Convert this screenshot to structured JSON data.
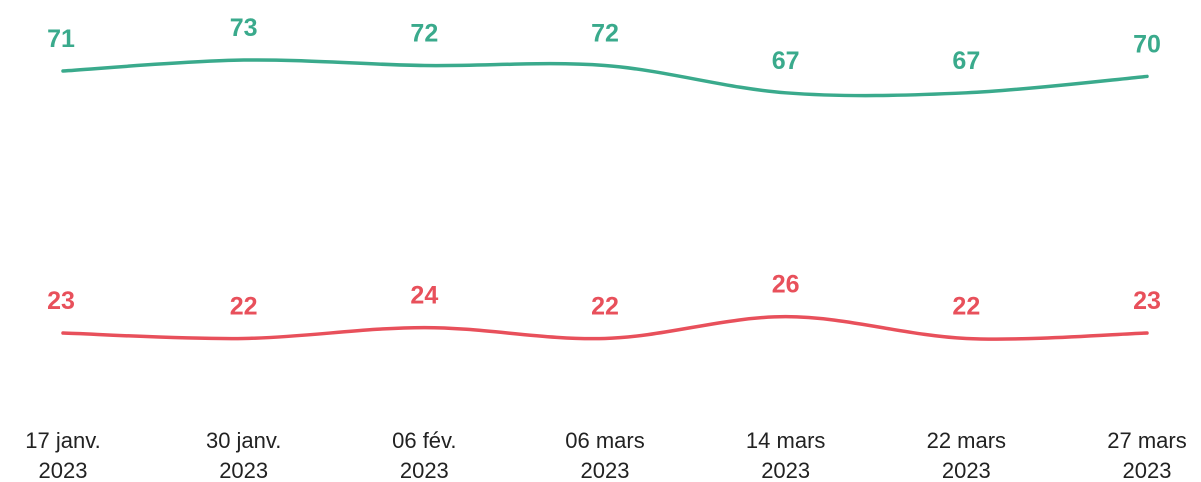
{
  "chart_data": {
    "type": "line",
    "categories": [
      "17 janv.\n2023",
      "30 janv.\n2023",
      "06 fév.\n2023",
      "06 mars\n2023",
      "14 mars\n2023",
      "22 mars\n2023",
      "27 mars\n2023"
    ],
    "series": [
      {
        "color": "#3aaa8c",
        "values": [
          71,
          73,
          72,
          72,
          67,
          67,
          70
        ]
      },
      {
        "color": "#e8505b",
        "values": [
          23,
          22,
          24,
          22,
          26,
          22,
          23
        ]
      }
    ],
    "ylim": [
      10,
      84
    ]
  }
}
